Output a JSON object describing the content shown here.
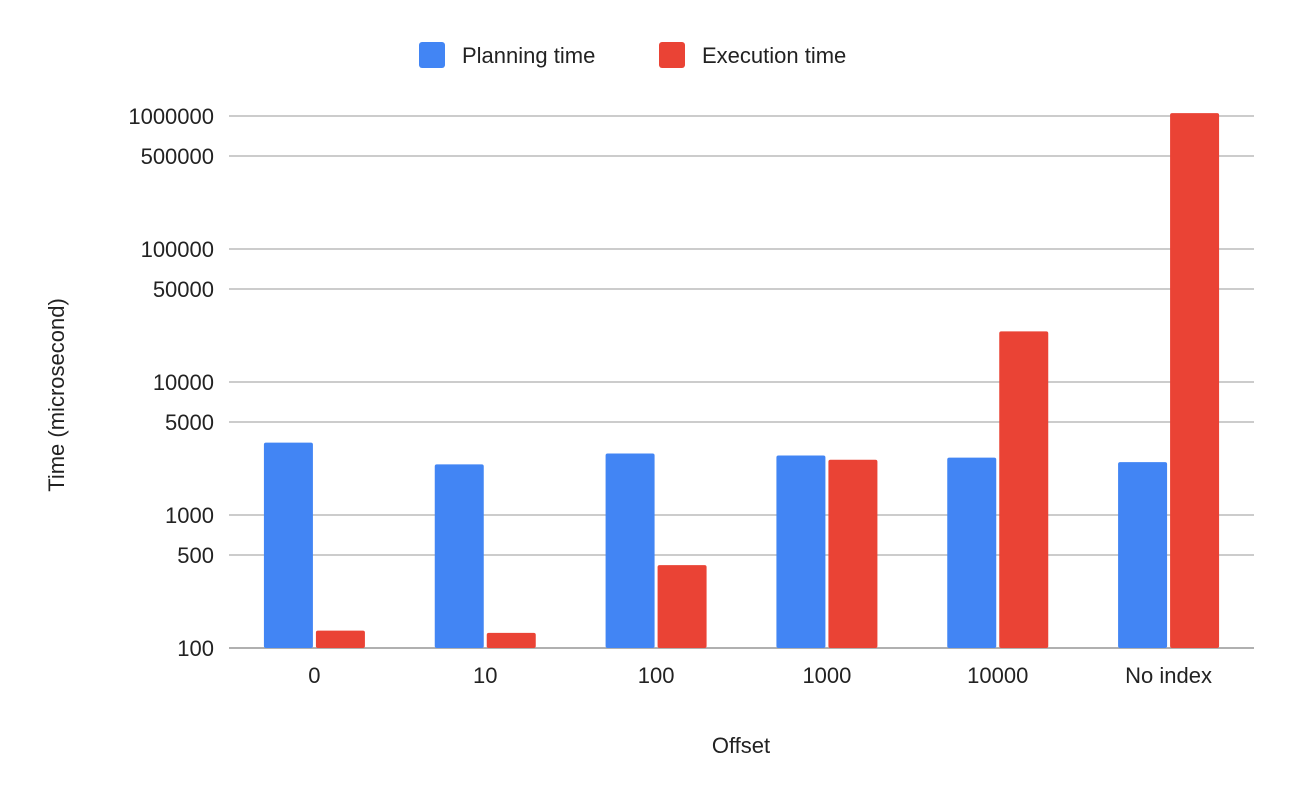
{
  "chart_data": {
    "type": "bar",
    "y_scale": "log",
    "categories": [
      "0",
      "10",
      "100",
      "1000",
      "10000",
      "No index"
    ],
    "series": [
      {
        "name": "Planning time",
        "color": "#4285F4",
        "values": [
          3500,
          2400,
          2900,
          2800,
          2700,
          2500
        ]
      },
      {
        "name": "Execution time",
        "color": "#EA4335",
        "values": [
          135,
          130,
          420,
          2600,
          24000,
          1050000
        ]
      }
    ],
    "y_ticks": [
      100,
      500,
      1000,
      5000,
      10000,
      50000,
      100000,
      500000,
      1000000
    ],
    "y_tick_labels": [
      "100",
      "500",
      "1000",
      "5000",
      "10000",
      "50000",
      "100000",
      "500000",
      "1000000"
    ],
    "ylim": [
      100,
      1000000
    ],
    "xlabel": "Offset",
    "ylabel": "Time (microsecond)",
    "grid": true,
    "legend_position": "top-center"
  }
}
